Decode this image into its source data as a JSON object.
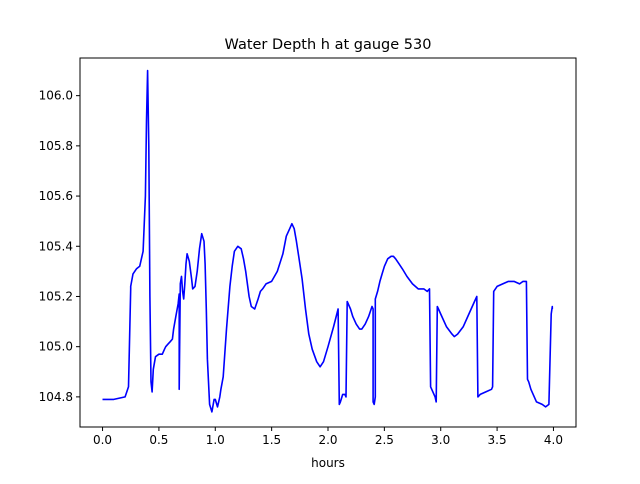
{
  "chart_data": {
    "type": "line",
    "title": "Water Depth h at gauge 530",
    "xlabel": "hours",
    "ylabel": "",
    "xlim": [
      -0.2,
      4.2
    ],
    "ylim": [
      104.68,
      106.15
    ],
    "xticks": [
      0.0,
      0.5,
      1.0,
      1.5,
      2.0,
      2.5,
      3.0,
      3.5,
      4.0
    ],
    "xtick_labels": [
      "0.0",
      "0.5",
      "1.0",
      "1.5",
      "2.0",
      "2.5",
      "3.0",
      "3.5",
      "4.0"
    ],
    "yticks": [
      104.8,
      105.0,
      105.2,
      105.4,
      105.6,
      105.8,
      106.0
    ],
    "ytick_labels": [
      "104.8",
      "105.0",
      "105.2",
      "105.4",
      "105.6",
      "105.8",
      "106.0"
    ],
    "grid": false,
    "legend": "none",
    "series": [
      {
        "color": "#0000ff",
        "x": [
          0.0,
          0.1,
          0.2,
          0.23,
          0.25,
          0.25,
          0.27,
          0.3,
          0.33,
          0.36,
          0.38,
          0.39,
          0.4,
          0.41,
          0.42,
          0.43,
          0.44,
          0.45,
          0.47,
          0.5,
          0.53,
          0.55,
          0.56,
          0.58,
          0.6,
          0.62,
          0.63,
          0.65,
          0.67,
          0.68,
          0.68,
          0.69,
          0.7,
          0.71,
          0.72,
          0.73,
          0.74,
          0.75,
          0.77,
          0.79,
          0.8,
          0.82,
          0.84,
          0.86,
          0.88,
          0.9,
          0.91,
          0.92,
          0.93,
          0.95,
          0.97,
          0.99,
          1.0,
          1.02,
          1.04,
          1.05,
          1.07,
          1.1,
          1.13,
          1.15,
          1.17,
          1.2,
          1.23,
          1.25,
          1.27,
          1.3,
          1.32,
          1.35,
          1.38,
          1.4,
          1.42,
          1.45,
          1.5,
          1.55,
          1.6,
          1.63,
          1.66,
          1.68,
          1.7,
          1.72,
          1.74,
          1.77,
          1.8,
          1.83,
          1.86,
          1.9,
          1.93,
          1.96,
          2.0,
          2.05,
          2.09,
          2.1,
          2.11,
          2.13,
          2.15,
          2.16,
          2.17,
          2.18,
          2.2,
          2.22,
          2.25,
          2.28,
          2.3,
          2.33,
          2.36,
          2.39,
          2.4,
          2.4,
          2.41,
          2.42,
          2.42,
          2.44,
          2.46,
          2.48,
          2.5,
          2.53,
          2.56,
          2.58,
          2.6,
          2.63,
          2.66,
          2.7,
          2.75,
          2.8,
          2.85,
          2.88,
          2.9,
          2.91,
          2.95,
          2.96,
          2.97,
          2.98,
          3.0,
          3.05,
          3.1,
          3.12,
          3.15,
          3.2,
          3.25,
          3.3,
          3.32,
          3.33,
          3.35,
          3.4,
          3.45,
          3.46,
          3.47,
          3.5,
          3.55,
          3.6,
          3.65,
          3.7,
          3.73,
          3.76,
          3.77,
          3.78,
          3.8,
          3.85,
          3.9,
          3.93,
          3.96,
          3.98,
          3.99,
          3.99,
          4.0
        ]
      }
    ],
    "y_values": [
      104.79,
      104.79,
      104.8,
      104.84,
      105.23,
      105.24,
      105.29,
      105.31,
      105.32,
      105.38,
      105.6,
      105.9,
      106.1,
      105.8,
      105.2,
      104.86,
      104.82,
      104.91,
      104.96,
      104.97,
      104.97,
      104.99,
      105.0,
      105.01,
      105.02,
      105.03,
      105.07,
      105.12,
      105.17,
      105.21,
      104.83,
      105.25,
      105.28,
      105.22,
      105.19,
      105.25,
      105.33,
      105.37,
      105.34,
      105.27,
      105.23,
      105.24,
      105.3,
      105.39,
      105.45,
      105.42,
      105.33,
      105.15,
      104.95,
      104.77,
      104.74,
      104.79,
      104.79,
      104.76,
      104.8,
      104.83,
      104.88,
      105.07,
      105.24,
      105.32,
      105.38,
      105.4,
      105.39,
      105.35,
      105.3,
      105.2,
      105.16,
      105.15,
      105.19,
      105.22,
      105.23,
      105.25,
      105.26,
      105.3,
      105.37,
      105.44,
      105.47,
      105.49,
      105.47,
      105.42,
      105.36,
      105.27,
      105.15,
      105.05,
      104.99,
      104.94,
      104.92,
      104.94,
      105.0,
      105.08,
      105.15,
      104.77,
      104.78,
      104.81,
      104.81,
      104.8,
      105.18,
      105.17,
      105.15,
      105.12,
      105.09,
      105.07,
      105.07,
      105.09,
      105.12,
      105.16,
      105.15,
      104.78,
      104.77,
      104.8,
      105.19,
      105.22,
      105.26,
      105.29,
      105.32,
      105.35,
      105.36,
      105.36,
      105.35,
      105.33,
      105.31,
      105.28,
      105.25,
      105.23,
      105.23,
      105.22,
      105.23,
      104.84,
      104.8,
      104.78,
      105.16,
      105.15,
      105.13,
      105.08,
      105.05,
      105.04,
      105.05,
      105.08,
      105.13,
      105.18,
      105.2,
      104.8,
      104.81,
      104.82,
      104.83,
      104.84,
      105.22,
      105.24,
      105.25,
      105.26,
      105.26,
      105.25,
      105.26,
      105.26,
      104.87,
      104.86,
      104.83,
      104.78,
      104.77,
      104.76,
      104.77,
      105.13,
      105.16,
      105.15
    ]
  }
}
